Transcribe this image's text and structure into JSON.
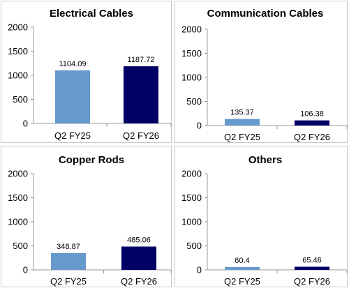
{
  "chart_data": [
    {
      "type": "bar",
      "title": "Electrical Cables",
      "categories": [
        "Q2 FY25",
        "Q2 FY26"
      ],
      "values": [
        1104.09,
        1187.72
      ],
      "data_labels": [
        "1104.09",
        "1187.72"
      ],
      "ylim": [
        0,
        2000
      ],
      "yticks": [
        "0",
        "500",
        "1000",
        "1500",
        "2000"
      ],
      "bar_colors": [
        "#6699cc",
        "#000066"
      ],
      "grid": false
    },
    {
      "type": "bar",
      "title": "Communication Cables",
      "categories": [
        "Q2 FY25",
        "Q2 FY26"
      ],
      "values": [
        135.37,
        106.38
      ],
      "data_labels": [
        "135.37",
        "106.38"
      ],
      "ylim": [
        0,
        2000
      ],
      "yticks": [
        "0",
        "500",
        "1000",
        "1500",
        "2000"
      ],
      "bar_colors": [
        "#6699cc",
        "#000066"
      ],
      "grid": false
    },
    {
      "type": "bar",
      "title": "Copper Rods",
      "categories": [
        "Q2 FY25",
        "Q2 FY26"
      ],
      "values": [
        348.87,
        485.06
      ],
      "data_labels": [
        "348.87",
        "485.06"
      ],
      "ylim": [
        0,
        2000
      ],
      "yticks": [
        "0",
        "500",
        "1000",
        "1500",
        "2000"
      ],
      "bar_colors": [
        "#6699cc",
        "#000066"
      ],
      "grid": false
    },
    {
      "type": "bar",
      "title": "Others",
      "categories": [
        "Q2 FY25",
        "Q2 FY26"
      ],
      "values": [
        60.4,
        65.46
      ],
      "data_labels": [
        "60.4",
        "65.46"
      ],
      "ylim": [
        0,
        2000
      ],
      "yticks": [
        "0",
        "500",
        "1000",
        "1500",
        "2000"
      ],
      "bar_colors": [
        "#6699cc",
        "#000066"
      ],
      "grid": false
    }
  ]
}
